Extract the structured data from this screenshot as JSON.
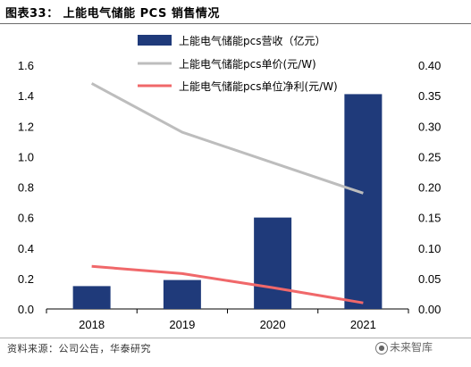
{
  "title": "图表33：  上能电气储能 PCS 销售情况",
  "source": "资料来源：公司公告，华泰研究",
  "watermark": {
    "icon": "chat-bubble-icon",
    "text": "未来智库"
  },
  "chart_data": {
    "type": "bar+line",
    "categories": [
      "2018",
      "2019",
      "2020",
      "2021"
    ],
    "left_axis": {
      "min": 0,
      "max": 1.6,
      "ticks": [
        "0.0",
        "0.2",
        "0.4",
        "0.6",
        "0.8",
        "1.0",
        "1.2",
        "1.4",
        "1.6"
      ]
    },
    "right_axis": {
      "min": 0,
      "max": 0.4,
      "ticks": [
        "0.00",
        "0.05",
        "0.10",
        "0.15",
        "0.20",
        "0.25",
        "0.30",
        "0.35",
        "0.40"
      ]
    },
    "legend_position": "top-center",
    "series": [
      {
        "name": "上能电气储能pcs营收（亿元）",
        "kind": "bar",
        "axis": "left",
        "color": "#1f3a7a",
        "values": [
          0.15,
          0.19,
          0.6,
          1.41
        ]
      },
      {
        "name": "上能电气储能pcs单价(元/W)",
        "kind": "line",
        "axis": "right",
        "color": "#bdbdbd",
        "values": [
          0.37,
          0.29,
          0.24,
          0.19
        ]
      },
      {
        "name": "上能电气储能pcs单位净利(元/W)",
        "kind": "line",
        "axis": "right",
        "color": "#f0686a",
        "values": [
          0.07,
          0.058,
          0.035,
          0.01
        ]
      }
    ]
  }
}
